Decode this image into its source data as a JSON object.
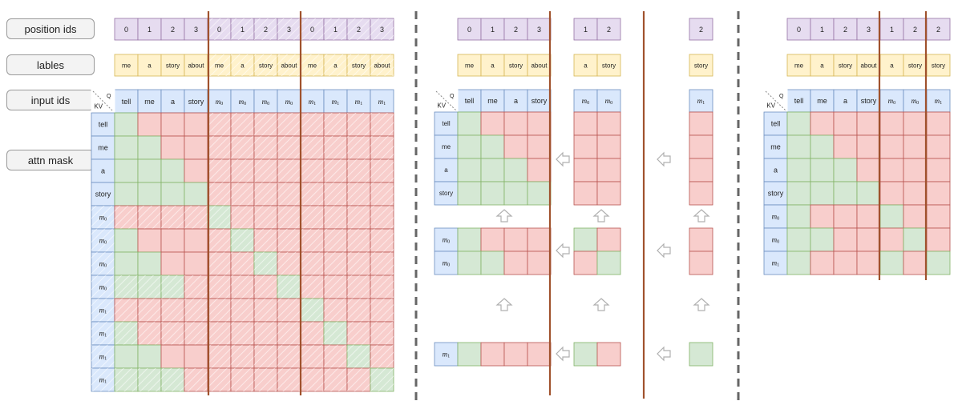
{
  "side_labels": [
    "position ids",
    "lables",
    "input ids",
    "attn mask"
  ],
  "corner": {
    "kv": "KV",
    "q": "Q"
  },
  "tokens": {
    "tell": "tell",
    "me": "me",
    "a": "a",
    "story": "story",
    "about": "about",
    "m0": "m0",
    "m1": "m1",
    "m_prefix": "m",
    "sub0": "0",
    "sub1": "1"
  },
  "digits": [
    "0",
    "1",
    "2",
    "3"
  ],
  "colors": {
    "purple_fill": "#e6dcf0",
    "purple_edge": "#9673a6",
    "yellow_fill": "#fff2cc",
    "yellow_edge": "#d6b656",
    "blue_fill": "#dae8fc",
    "blue_edge": "#6c8ebf",
    "green_fill": "#d5e8d4",
    "green_edge": "#82b366",
    "red_fill": "#f8cecc",
    "red_edge": "#b85450",
    "cut_line": "#a0522d",
    "separator": "#666666",
    "arrow": "#b0b0b0"
  }
}
